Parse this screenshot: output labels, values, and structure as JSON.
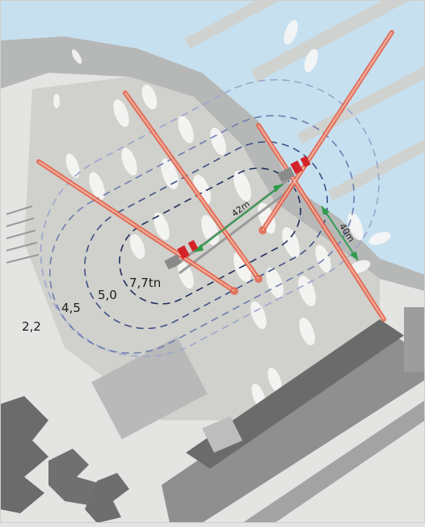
{
  "load_zones": [
    {
      "label": "7,7tn",
      "color": "#2f3e63"
    },
    {
      "label": "5,0",
      "color": "#3d4f7f"
    },
    {
      "label": "4,5",
      "color": "#6577a8"
    },
    {
      "label": "2,2",
      "color": "#8d9cc6"
    }
  ],
  "dimensions": {
    "rail_length": "42m",
    "rail_gauge": "40m"
  },
  "colors": {
    "water": "#c7e0ef",
    "ground": "#e4e4e2",
    "crane_boom": "#e6634a",
    "crane_cab": "#d4242a",
    "dimension_line": "#2e9b4a",
    "building_dark": "#6b6b6b",
    "building_mid": "#8f8f8f"
  }
}
